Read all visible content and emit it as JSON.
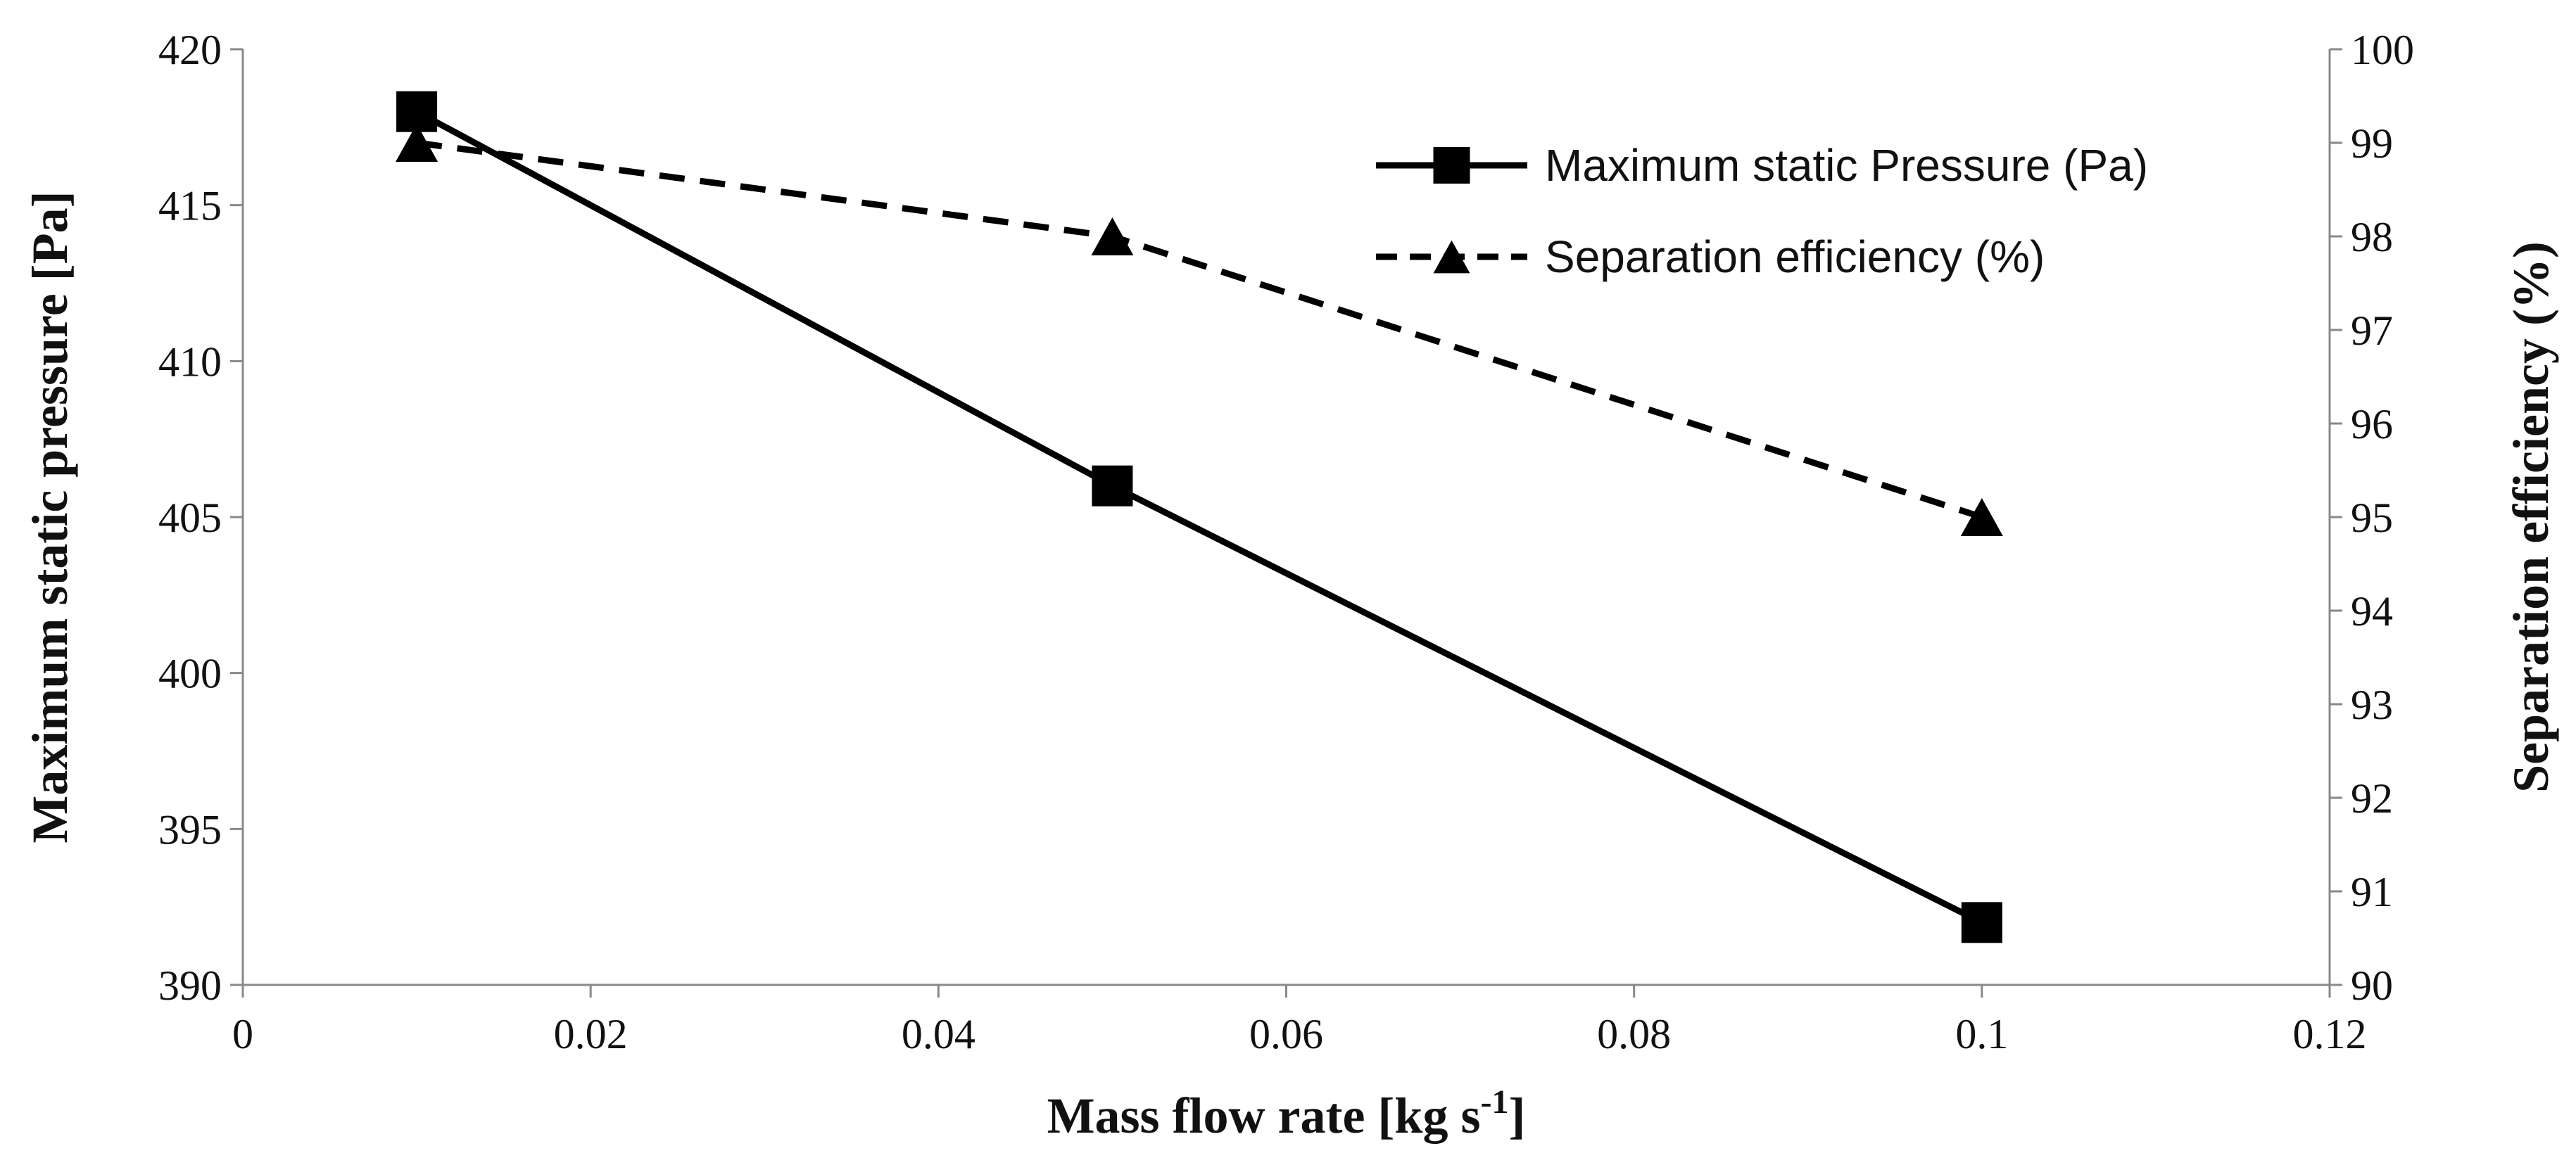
{
  "chart_data": {
    "type": "line",
    "title": "",
    "xlabel": "Mass flow rate [kg s",
    "xlabel_superscript": "-1",
    "xlabel_suffix": "]",
    "ylabel": "Maximum static pressure [Pa]",
    "y2label": "Separation efficiency (%)",
    "xlim": [
      0,
      0.12
    ],
    "ylim": [
      390,
      420
    ],
    "y2lim": [
      90,
      100
    ],
    "x_ticks": [
      "0",
      "0.02",
      "0.04",
      "0.06",
      "0.08",
      "0.1",
      "0.12"
    ],
    "y_ticks": [
      "390",
      "395",
      "400",
      "405",
      "410",
      "415",
      "420"
    ],
    "y2_ticks": [
      "90",
      "91",
      "92",
      "93",
      "94",
      "95",
      "96",
      "97",
      "98",
      "99",
      "100"
    ],
    "grid": false,
    "legend_position": "top-right",
    "series": [
      {
        "name": "Maximum static Pressure (Pa)",
        "axis": "left",
        "marker": "square",
        "line_style": "solid",
        "x": [
          0.01,
          0.05,
          0.1
        ],
        "values": [
          418,
          406,
          392
        ]
      },
      {
        "name": "Separation efficiency (%)",
        "axis": "right",
        "marker": "triangle",
        "line_style": "dashed",
        "x": [
          0.01,
          0.05,
          0.1
        ],
        "values": [
          99,
          98,
          95
        ]
      }
    ],
    "colors": {
      "line": "#000000",
      "axis": "#888888"
    }
  }
}
